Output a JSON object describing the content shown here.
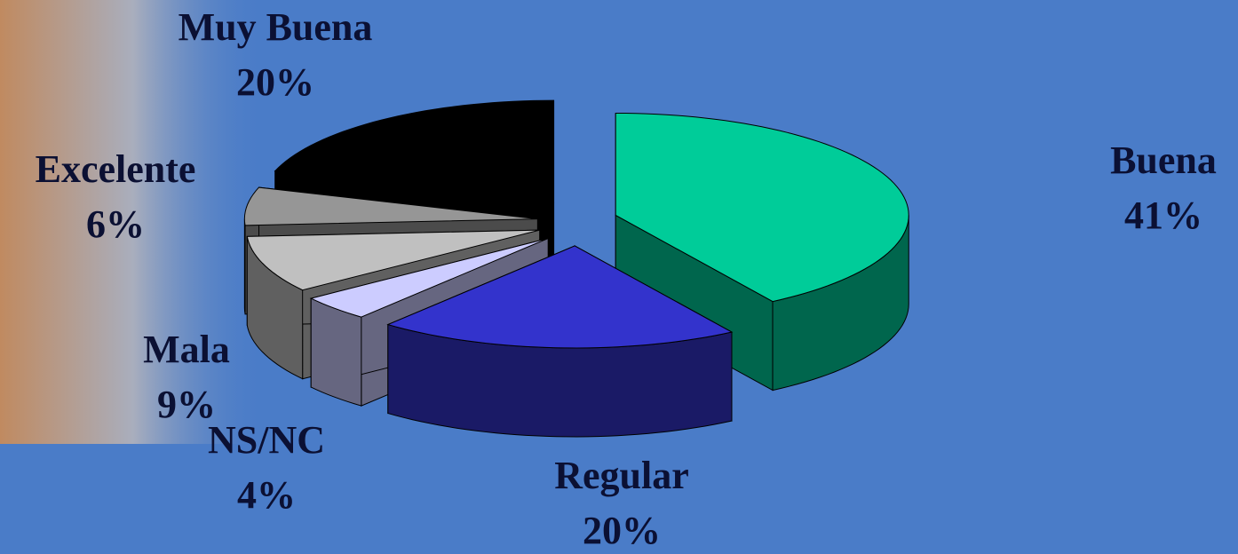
{
  "chart_data": {
    "type": "pie",
    "categories": [
      "Buena",
      "Regular",
      "NS/NC",
      "Mala",
      "Excelente",
      "Muy Buena"
    ],
    "values": [
      41,
      20,
      4,
      9,
      6,
      20
    ],
    "value_labels": [
      "41%",
      "20%",
      "4%",
      "9%",
      "6%",
      "20%"
    ],
    "colors": [
      "#00cc99",
      "#3333cc",
      "#ccccff",
      "#c0c0c0",
      "#969696",
      "#000000"
    ]
  }
}
